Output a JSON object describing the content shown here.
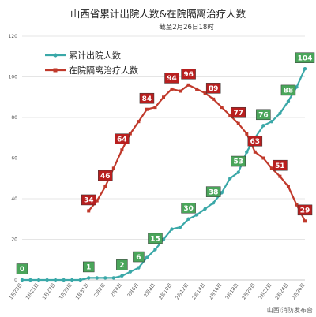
{
  "title": "山西省累计出院人数&在院隔离治疗人数",
  "subtitle": "截至2月26日18时",
  "watermark": "山西i消防发布台",
  "colors": {
    "discharged_line": "#3aa8a8",
    "discharged_label": "#4aa55a",
    "hospitalized_line": "#c0392b",
    "hospitalized_label": "#b81f1f",
    "grid": "#dcdcdc"
  },
  "chart_data": {
    "type": "line",
    "title": "山西省累计出院人数&在院隔离治疗人数",
    "subtitle": "截至2月26日18时",
    "ylim": [
      0,
      120
    ],
    "yticks": [
      0,
      20,
      40,
      60,
      80,
      100,
      120
    ],
    "grid": "horizontal",
    "legend_position": "top-left",
    "x": [
      "1月23日",
      "1月24日",
      "1月25日",
      "1月26日",
      "1月27日",
      "1月28日",
      "1月29日",
      "1月30日",
      "1月31日",
      "2月1日",
      "2月2日",
      "2月3日",
      "2月4日",
      "2月5日",
      "2月6日",
      "2月7日",
      "2月8日",
      "2月9日",
      "2月10日",
      "2月11日",
      "2月12日",
      "2月13日",
      "2月14日",
      "2月15日",
      "2月16日",
      "2月17日",
      "2月18日",
      "2月19日",
      "2月20日",
      "2月21日",
      "2月22日",
      "2月23日",
      "2月24日",
      "2月25日",
      "2月26日"
    ],
    "xtick_labels": [
      "1月23日",
      "1月25日",
      "1月27日",
      "1月29日",
      "1月31日",
      "2月2日",
      "2月4日",
      "2月6日",
      "2月8日",
      "2月10日",
      "2月12日",
      "2月14日",
      "2月16日",
      "2月18日",
      "2月20日",
      "2月22日",
      "2月24日",
      "2月26日"
    ],
    "series": [
      {
        "name": "累计出院人数",
        "values": [
          0,
          0,
          0,
          0,
          0,
          0,
          0,
          0,
          1,
          1,
          1,
          1,
          2,
          4,
          6,
          11,
          15,
          20,
          25,
          26,
          30,
          32,
          35,
          38,
          43,
          50,
          53,
          63,
          70,
          76,
          78,
          82,
          88,
          95,
          104
        ],
        "labeled_points": [
          [
            0,
            0
          ],
          [
            8,
            1
          ],
          [
            12,
            2
          ],
          [
            14,
            6
          ],
          [
            16,
            15
          ],
          [
            20,
            30
          ],
          [
            23,
            38
          ],
          [
            26,
            53
          ],
          [
            29,
            76
          ],
          [
            32,
            88
          ],
          [
            34,
            104
          ]
        ]
      },
      {
        "name": "在院隔离治疗人数",
        "values": [
          null,
          null,
          null,
          null,
          null,
          null,
          null,
          null,
          34,
          39,
          46,
          55,
          64,
          72,
          78,
          84,
          85,
          90,
          94,
          93,
          96,
          94,
          92,
          89,
          85,
          81,
          77,
          72,
          63,
          60,
          55,
          51,
          46,
          37,
          29
        ],
        "labeled_points": [
          [
            8,
            34
          ],
          [
            10,
            46
          ],
          [
            12,
            64
          ],
          [
            15,
            84
          ],
          [
            18,
            94
          ],
          [
            20,
            96
          ],
          [
            23,
            89
          ],
          [
            26,
            77
          ],
          [
            28,
            63
          ],
          [
            31,
            51
          ],
          [
            34,
            29
          ]
        ]
      }
    ]
  }
}
